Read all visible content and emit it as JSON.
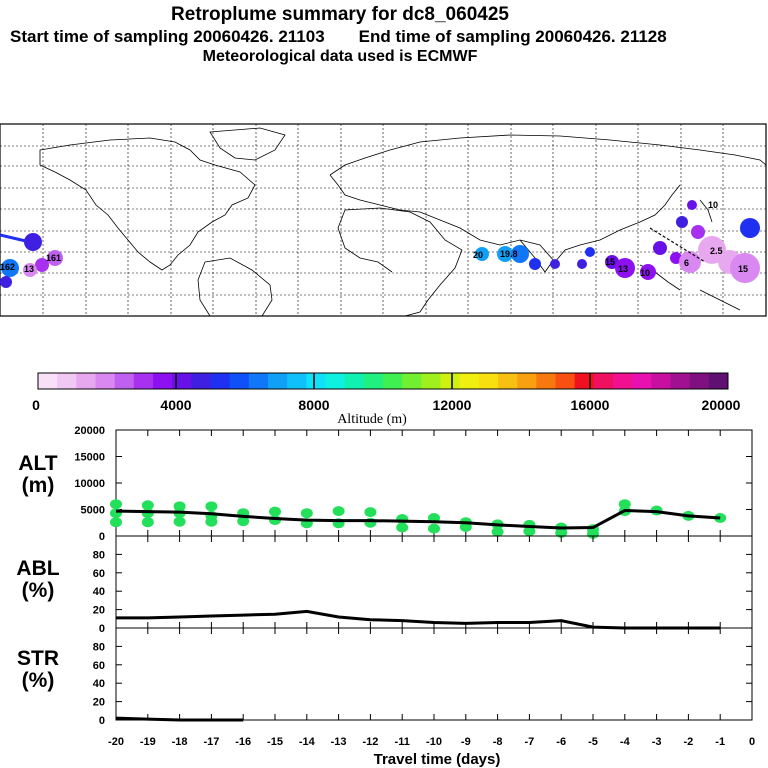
{
  "header": {
    "title": "Retroplume summary for dc8_060425",
    "start_label": "Start time of sampling 20060426. 21103",
    "end_label": "End time of sampling 20060426. 21128",
    "met_label": "Meteorological data used is ECMWF"
  },
  "colors": {
    "marker_green": "#22e05a",
    "line": "#000000",
    "grid": "#000000"
  },
  "colorbar": {
    "ticks": [
      "0",
      "4000",
      "8000",
      "12000",
      "16000",
      "20000"
    ],
    "label": "Altitude (m)",
    "swatches": [
      "#f8e0f8",
      "#f0c8f4",
      "#e8a8f0",
      "#d888f0",
      "#c060f0",
      "#a830f0",
      "#8c10f0",
      "#6810e8",
      "#4020e0",
      "#2030f0",
      "#1050f8",
      "#1078f8",
      "#10a0f8",
      "#10c0f8",
      "#10e0f8",
      "#10f0e0",
      "#10f0b0",
      "#20f080",
      "#40f050",
      "#70f030",
      "#a0f020",
      "#d0f010",
      "#f0f010",
      "#f8e010",
      "#f8c010",
      "#f8a010",
      "#f87810",
      "#f85010",
      "#f01020",
      "#f01060",
      "#f01090",
      "#e810b0",
      "#c810a0",
      "#a01090",
      "#801080",
      "#601070"
    ]
  },
  "map_labels": [
    "162",
    "161",
    "13",
    "20",
    "19.8",
    "15",
    "13",
    "10",
    "6",
    "2.5",
    "15",
    "10"
  ],
  "chart_data": [
    {
      "type": "line",
      "panel": "ALT",
      "ylabel_lines": [
        "ALT",
        "(m)"
      ],
      "ylim": [
        0,
        20000
      ],
      "yticks": [
        "0",
        "5000",
        "10000",
        "15000",
        "20000"
      ],
      "x": [
        -20,
        -19,
        -18,
        -17,
        -16,
        -15,
        -14,
        -13,
        -12,
        -11,
        -10,
        -9,
        -8,
        -7,
        -6,
        -5,
        -4,
        -3,
        -2,
        -1
      ],
      "series": [
        {
          "name": "median altitude",
          "values": [
            4700,
            4600,
            4500,
            4200,
            3700,
            3300,
            3000,
            2900,
            2900,
            2800,
            2700,
            2500,
            2100,
            1800,
            1500,
            1600,
            4800,
            4600,
            3800,
            3400
          ]
        }
      ],
      "scatter": {
        "x": [
          -20,
          -20,
          -20,
          -19,
          -19,
          -19,
          -18,
          -18,
          -18,
          -17,
          -17,
          -17,
          -16,
          -16,
          -15,
          -15,
          -14,
          -14,
          -13,
          -13,
          -12,
          -12,
          -11,
          -11,
          -10,
          -10,
          -9,
          -9,
          -8,
          -8,
          -7,
          -7,
          -6,
          -6,
          -5,
          -5,
          -4,
          -4,
          -3,
          -2,
          -1
        ],
        "y": [
          6000,
          4300,
          2600,
          5800,
          4300,
          2600,
          5600,
          4300,
          2700,
          5600,
          3800,
          2700,
          4300,
          2800,
          4600,
          3000,
          4300,
          2400,
          4700,
          2400,
          4500,
          2500,
          3200,
          1600,
          3400,
          1400,
          2600,
          1700,
          2200,
          800,
          2100,
          900,
          1600,
          600,
          1300,
          400,
          4700,
          6000,
          4800,
          3800,
          3400
        ]
      }
    },
    {
      "type": "line",
      "panel": "ABL",
      "ylabel_lines": [
        "ABL",
        "(%)"
      ],
      "ylim": [
        0,
        100
      ],
      "yticks": [
        "0",
        "20",
        "40",
        "60",
        "80"
      ],
      "x": [
        -20,
        -19,
        -18,
        -17,
        -16,
        -15,
        -14,
        -13,
        -12,
        -11,
        -10,
        -9,
        -8,
        -7,
        -6,
        -5,
        -4,
        -3,
        -2,
        -1
      ],
      "series": [
        {
          "name": "ABL fraction",
          "values": [
            11,
            11,
            12,
            13,
            14,
            15,
            18,
            12,
            9,
            8,
            6,
            5,
            6,
            6,
            8,
            1,
            0,
            0,
            0,
            0
          ]
        }
      ]
    },
    {
      "type": "line",
      "panel": "STR",
      "ylabel_lines": [
        "STR",
        "(%)"
      ],
      "ylim": [
        0,
        100
      ],
      "yticks": [
        "0",
        "20",
        "40",
        "60",
        "80"
      ],
      "x": [
        -20,
        -19,
        -18,
        -17,
        -16
      ],
      "series": [
        {
          "name": "STR fraction",
          "values": [
            2,
            1,
            0,
            0,
            0
          ]
        }
      ],
      "xlabel": "Travel time (days)",
      "xticks": [
        "-20",
        "-19",
        "-18",
        "-17",
        "-16",
        "-15",
        "-14",
        "-13",
        "-12",
        "-11",
        "-10",
        "-9",
        "-8",
        "-7",
        "-6",
        "-5",
        "-4",
        "-3",
        "-2",
        "-1",
        "0"
      ]
    }
  ]
}
